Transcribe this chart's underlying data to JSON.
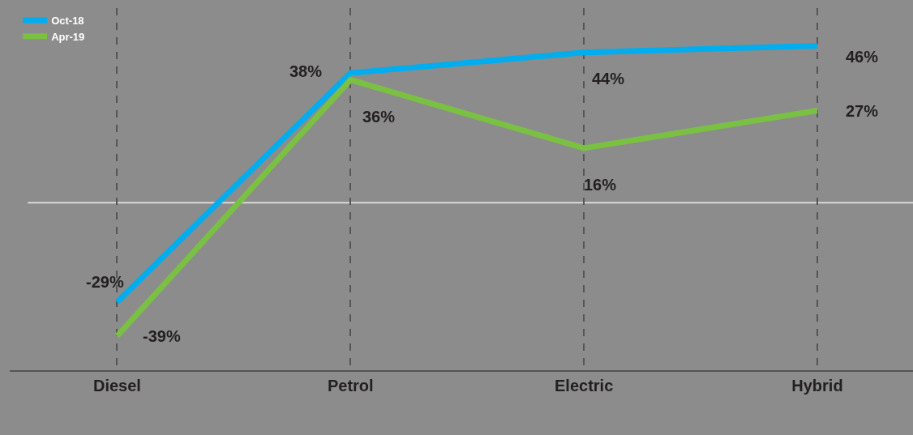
{
  "chart_data": {
    "type": "line",
    "categories": [
      "Diesel",
      "Petrol",
      "Electric",
      "Hybrid"
    ],
    "series": [
      {
        "name": "Oct-18",
        "color": "#00aeef",
        "values": [
          -29,
          38,
          44,
          46
        ],
        "value_labels": [
          "-29%",
          "38%",
          "44%",
          "46%"
        ]
      },
      {
        "name": "Apr-19",
        "color": "#7ac143",
        "values": [
          -39,
          36,
          16,
          27
        ],
        "value_labels": [
          "-39%",
          "36%",
          "16%",
          "27%"
        ]
      }
    ],
    "ylim": [
      -49,
      57
    ],
    "ref_lines": [
      {
        "axis": "y",
        "value": 0,
        "color": "#d9d9d9"
      }
    ],
    "grid": "x",
    "legend": "top left",
    "marker": "none",
    "line_style": "solid"
  }
}
